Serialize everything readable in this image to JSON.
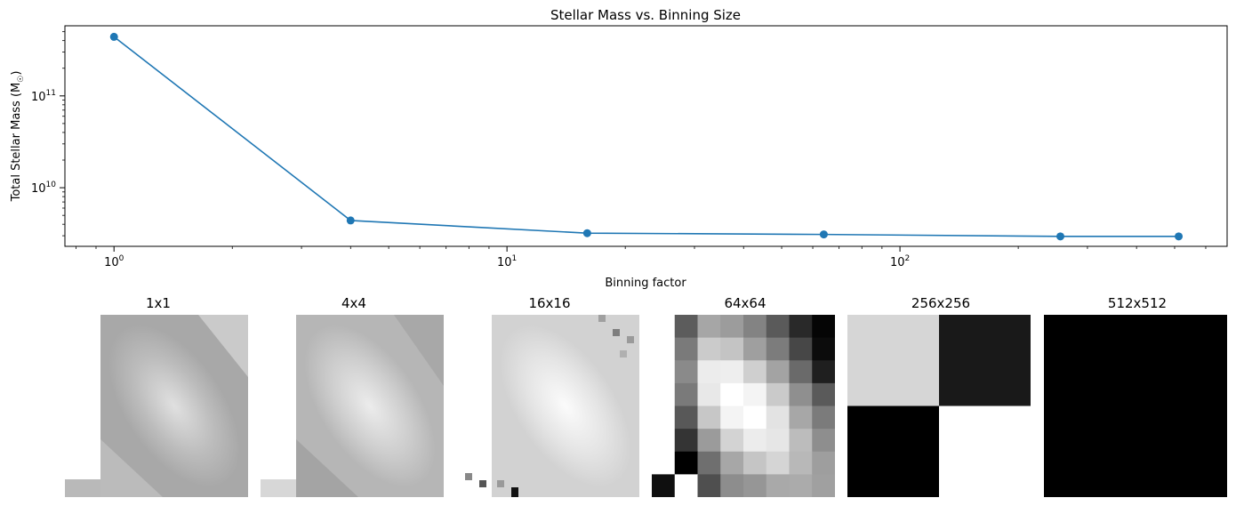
{
  "chart_data": {
    "type": "line",
    "title": "Stellar Mass vs. Binning Size",
    "xlabel": "Binning factor",
    "ylabel": "Total Stellar Mass (M☉)",
    "xscale": "log",
    "yscale": "log",
    "xlim": [
      0.75,
      680
    ],
    "ylim": [
      2300000000.0,
      580000000000.0
    ],
    "x_ticks": [
      1,
      10,
      100
    ],
    "x_tick_labels": [
      [
        "10",
        "0"
      ],
      [
        "10",
        "1"
      ],
      [
        "10",
        "2"
      ]
    ],
    "y_ticks": [
      10000000000.0,
      100000000000.0
    ],
    "y_tick_labels": [
      [
        "10",
        "10"
      ],
      [
        "10",
        "11"
      ]
    ],
    "series": [
      {
        "color": "#1f77b4",
        "marker": "circle",
        "x": [
          1,
          4,
          16,
          64,
          256,
          512
        ],
        "y": [
          440000000000.0,
          4400000000.0,
          3200000000.0,
          3100000000.0,
          2950000000.0,
          2950000000.0
        ]
      }
    ],
    "grid": false,
    "legend": "none"
  },
  "panels": [
    {
      "title": "1x1"
    },
    {
      "title": "4x4"
    },
    {
      "title": "16x16"
    },
    {
      "title": "64x64"
    },
    {
      "title": "256x256"
    },
    {
      "title": "512x512"
    }
  ],
  "panel_grids": {
    "p64": {
      "rows": [
        [
          "#ffffff",
          "#5c5c5c",
          "#a6a6a6",
          "#9c9c9c",
          "#838383",
          "#5a5a5a",
          "#292929",
          "#050505"
        ],
        [
          "#ffffff",
          "#7a7a7a",
          "#cbcbcb",
          "#c4c4c4",
          "#9f9f9f",
          "#7c7c7c",
          "#474747",
          "#0c0c0c"
        ],
        [
          "#ffffff",
          "#8a8a8a",
          "#ececec",
          "#eeeeee",
          "#cfcfcf",
          "#a3a3a3",
          "#6a6a6a",
          "#1f1f1f"
        ],
        [
          "#ffffff",
          "#7a7a7a",
          "#e8e8e8",
          "#ffffff",
          "#f4f4f4",
          "#cacaca",
          "#8f8f8f",
          "#5a5a5a"
        ],
        [
          "#ffffff",
          "#585858",
          "#c7c7c7",
          "#f4f4f4",
          "#ffffff",
          "#e3e3e3",
          "#a7a7a7",
          "#7b7b7b"
        ],
        [
          "#ffffff",
          "#343434",
          "#9b9b9b",
          "#d3d3d3",
          "#ececec",
          "#e6e6e6",
          "#bcbcbc",
          "#8e8e8e"
        ],
        [
          "#ffffff",
          "#000000",
          "#6f6f6f",
          "#a7a7a7",
          "#c5c5c5",
          "#d5d5d5",
          "#b8b8b8",
          "#9e9e9e"
        ],
        [
          "#0f0f0f",
          "#ffffff",
          "#4f4f4f",
          "#8d8d8d",
          "#969696",
          "#a9a9a9",
          "#ababab",
          "#a0a0a0"
        ]
      ]
    },
    "p256": {
      "rows": [
        [
          "#d6d6d6",
          "#191919"
        ],
        [
          "#000000",
          "#ffffff"
        ]
      ]
    },
    "p512": {
      "rows": [
        [
          "#000000"
        ]
      ]
    }
  }
}
